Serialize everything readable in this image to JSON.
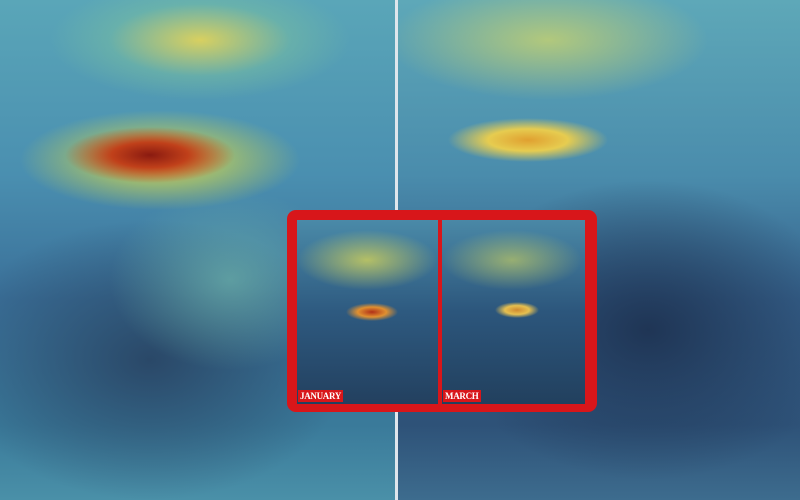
{
  "inset": {
    "left_label": "JANUARY",
    "right_label": "MARCH"
  },
  "colors": {
    "frame": "#d8161a",
    "high_pollution": "#8a1a10",
    "low": "#2a4868"
  }
}
